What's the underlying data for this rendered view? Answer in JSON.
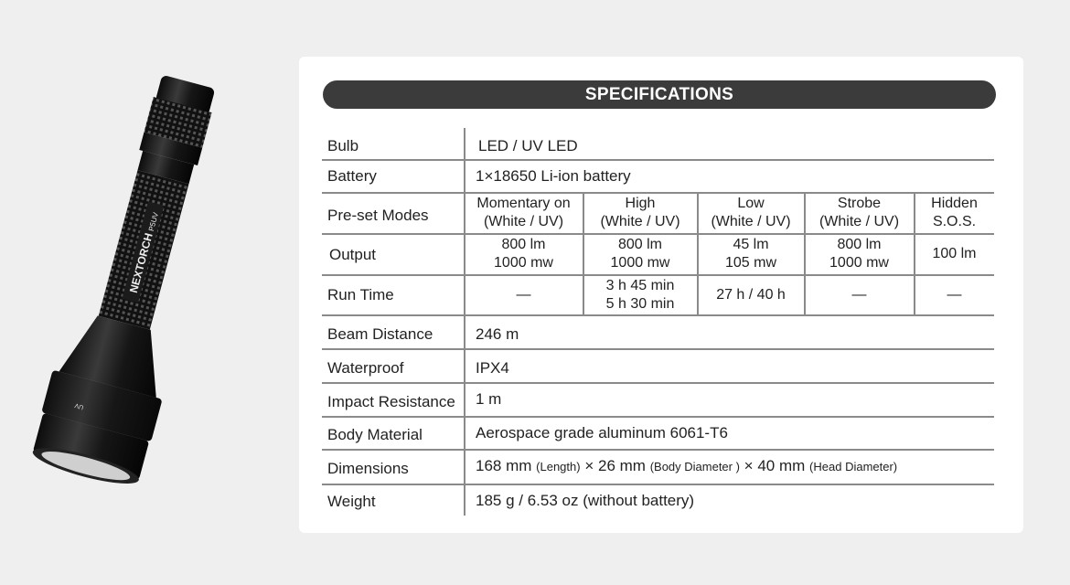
{
  "product_image": {
    "logo": "NEXTORCH",
    "model": "P5UV",
    "mode_mark": "UV"
  },
  "header": {
    "title": "SPECIFICATIONS"
  },
  "colors": {
    "header_bg": "#3b3b3b",
    "card_bg": "#ffffff",
    "page_bg": "#efefef",
    "rule": "#8a8a8a"
  },
  "specs": {
    "bulb": {
      "label": "Bulb",
      "value": "LED / UV LED"
    },
    "battery": {
      "label": "Battery",
      "value": "1×18650 Li-ion battery"
    },
    "modes": {
      "label": "Pre-set Modes",
      "columns": [
        {
          "name": "Momentary on",
          "sub": "(White / UV)"
        },
        {
          "name": "High",
          "sub": "(White / UV)"
        },
        {
          "name": "Low",
          "sub": "(White / UV)"
        },
        {
          "name": "Strobe",
          "sub": "(White / UV)"
        },
        {
          "name": "Hidden",
          "sub": "S.O.S."
        }
      ]
    },
    "output": {
      "label": "Output",
      "cells": [
        {
          "a": "800 lm",
          "b": "1000 mw"
        },
        {
          "a": "800 lm",
          "b": "1000 mw"
        },
        {
          "a": "45 lm",
          "b": "105 mw"
        },
        {
          "a": "800 lm",
          "b": "1000 mw"
        },
        {
          "a": "100 lm",
          "b": ""
        }
      ]
    },
    "runtime": {
      "label": "Run Time",
      "cells": [
        {
          "a": "—",
          "b": ""
        },
        {
          "a": "3 h 45 min",
          "b": "5 h 30 min"
        },
        {
          "a": "27 h / 40 h",
          "b": ""
        },
        {
          "a": "—",
          "b": ""
        },
        {
          "a": "—",
          "b": ""
        }
      ]
    },
    "beam": {
      "label": "Beam Distance",
      "value": "246 m"
    },
    "waterproof": {
      "label": "Waterproof",
      "value": "IPX4"
    },
    "impact": {
      "label": "Impact Resistance",
      "value": "1 m"
    },
    "material": {
      "label": "Body Material",
      "value": "Aerospace grade aluminum 6061-T6"
    },
    "dimensions": {
      "label": "Dimensions",
      "length": "168 mm",
      "length_note": "(Length)",
      "body": "26 mm",
      "body_note": "(Body Diameter )",
      "head": "40 mm",
      "head_note": "(Head Diameter)",
      "sep": "×"
    },
    "weight": {
      "label": "Weight",
      "value": "185 g / 6.53 oz (without battery)"
    }
  }
}
